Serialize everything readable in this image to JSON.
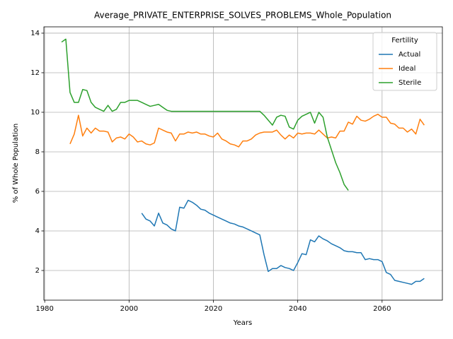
{
  "chart_data": {
    "type": "line",
    "title": "Average_PRIVATE_ENTERPRISE_SOLVES_PROBLEMS_Whole_Population",
    "xlabel": "Years",
    "ylabel": "% of Whole Population",
    "legend_title": "Fertility",
    "legend_loc": "upper right",
    "grid": true,
    "xlim": [
      1979.8,
      2074.3
    ],
    "ylim": [
      0.5,
      14.32
    ],
    "xticks": [
      1980,
      2000,
      2020,
      2040,
      2060
    ],
    "yticks": [
      2,
      4,
      6,
      8,
      10,
      12,
      14
    ],
    "series": [
      {
        "name": "Actual",
        "color": "#1f77b4",
        "x": [
          2003,
          2004,
          2005,
          2006,
          2007,
          2008,
          2009,
          2010,
          2011,
          2012,
          2013,
          2014,
          2015,
          2016,
          2017,
          2018,
          2019,
          2020,
          2021,
          2022,
          2023,
          2024,
          2025,
          2026,
          2027,
          2028,
          2029,
          2030,
          2031,
          2032,
          2033,
          2034,
          2035,
          2036,
          2037,
          2038,
          2039,
          2040,
          2041,
          2042,
          2043,
          2044,
          2045,
          2046,
          2047,
          2048,
          2049,
          2050,
          2051,
          2052,
          2053,
          2054,
          2055,
          2056,
          2057,
          2058,
          2059,
          2060,
          2061,
          2062,
          2063,
          2064,
          2065,
          2066,
          2067,
          2068,
          2069,
          2070
        ],
        "values": [
          4.9,
          4.6,
          4.5,
          4.25,
          4.9,
          4.4,
          4.3,
          4.1,
          4.0,
          5.2,
          5.15,
          5.55,
          5.45,
          5.3,
          5.1,
          5.05,
          4.9,
          4.8,
          4.7,
          4.6,
          4.5,
          4.4,
          4.35,
          4.25,
          4.2,
          4.1,
          4.0,
          3.9,
          3.8,
          2.8,
          1.95,
          2.1,
          2.1,
          2.25,
          2.15,
          2.1,
          2.0,
          2.4,
          2.85,
          2.8,
          3.55,
          3.45,
          3.75,
          3.6,
          3.5,
          3.35,
          3.25,
          3.15,
          3.0,
          2.95,
          2.95,
          2.9,
          2.9,
          2.55,
          2.6,
          2.55,
          2.55,
          2.45,
          1.9,
          1.8,
          1.5,
          1.45,
          1.4,
          1.35,
          1.3,
          1.45,
          1.45,
          1.6
        ]
      },
      {
        "name": "Ideal",
        "color": "#ff7f0e",
        "x": [
          1986,
          1987,
          1988,
          1989,
          1990,
          1991,
          1992,
          1993,
          1994,
          1995,
          1996,
          1997,
          1998,
          1999,
          2000,
          2001,
          2002,
          2003,
          2004,
          2005,
          2006,
          2007,
          2008,
          2009,
          2010,
          2011,
          2012,
          2013,
          2014,
          2015,
          2016,
          2017,
          2018,
          2019,
          2020,
          2021,
          2022,
          2023,
          2024,
          2025,
          2026,
          2027,
          2028,
          2029,
          2030,
          2031,
          2032,
          2033,
          2034,
          2035,
          2036,
          2037,
          2038,
          2039,
          2040,
          2041,
          2042,
          2043,
          2044,
          2045,
          2046,
          2047,
          2048,
          2049,
          2050,
          2051,
          2052,
          2053,
          2054,
          2055,
          2056,
          2057,
          2058,
          2059,
          2060,
          2061,
          2062,
          2063,
          2064,
          2065,
          2066,
          2067,
          2068,
          2069,
          2070
        ],
        "values": [
          8.4,
          8.9,
          9.85,
          8.8,
          9.2,
          8.95,
          9.2,
          9.05,
          9.05,
          9.0,
          8.5,
          8.7,
          8.75,
          8.65,
          8.9,
          8.75,
          8.5,
          8.55,
          8.4,
          8.35,
          8.45,
          9.2,
          9.1,
          9.0,
          8.95,
          8.55,
          8.9,
          8.9,
          9.0,
          8.95,
          9.0,
          8.9,
          8.9,
          8.8,
          8.75,
          8.95,
          8.65,
          8.55,
          8.4,
          8.35,
          8.25,
          8.55,
          8.55,
          8.65,
          8.85,
          8.95,
          9.0,
          9.0,
          9.0,
          9.1,
          8.85,
          8.65,
          8.85,
          8.7,
          8.95,
          8.9,
          8.95,
          8.95,
          8.9,
          9.1,
          8.9,
          8.7,
          8.75,
          8.7,
          9.05,
          9.05,
          9.5,
          9.4,
          9.8,
          9.6,
          9.55,
          9.65,
          9.8,
          9.9,
          9.75,
          9.75,
          9.45,
          9.4,
          9.2,
          9.2,
          9.0,
          9.15,
          8.9,
          9.65,
          9.35
        ]
      },
      {
        "name": "Sterile",
        "color": "#2ca02c",
        "x": [
          1984,
          1985,
          1986,
          1987,
          1988,
          1989,
          1990,
          1991,
          1992,
          1993,
          1994,
          1995,
          1996,
          1997,
          1998,
          1999,
          2000,
          2001,
          2002,
          2003,
          2004,
          2005,
          2006,
          2007,
          2008,
          2009,
          2010,
          2011,
          2012,
          2013,
          2014,
          2015,
          2016,
          2017,
          2018,
          2019,
          2020,
          2021,
          2022,
          2023,
          2024,
          2025,
          2026,
          2027,
          2028,
          2029,
          2030,
          2031,
          2032,
          2033,
          2034,
          2035,
          2036,
          2037,
          2038,
          2039,
          2040,
          2041,
          2042,
          2043,
          2044,
          2045,
          2046,
          2047,
          2048,
          2049,
          2050,
          2051,
          2052
        ],
        "values": [
          13.55,
          13.7,
          11.0,
          10.5,
          10.5,
          11.15,
          11.1,
          10.5,
          10.25,
          10.15,
          10.05,
          10.35,
          10.05,
          10.15,
          10.5,
          10.5,
          10.6,
          10.6,
          10.6,
          10.5,
          10.4,
          10.3,
          10.35,
          10.4,
          10.25,
          10.1,
          10.05,
          10.05,
          10.05,
          10.05,
          10.05,
          10.05,
          10.05,
          10.05,
          10.05,
          10.05,
          10.05,
          10.05,
          10.05,
          10.05,
          10.05,
          10.05,
          10.05,
          10.05,
          10.05,
          10.05,
          10.05,
          10.05,
          9.85,
          9.6,
          9.35,
          9.75,
          9.85,
          9.8,
          9.25,
          9.15,
          9.6,
          9.8,
          9.9,
          10.0,
          9.45,
          10.0,
          9.75,
          8.75,
          8.1,
          7.45,
          6.95,
          6.35,
          6.05
        ]
      }
    ]
  }
}
